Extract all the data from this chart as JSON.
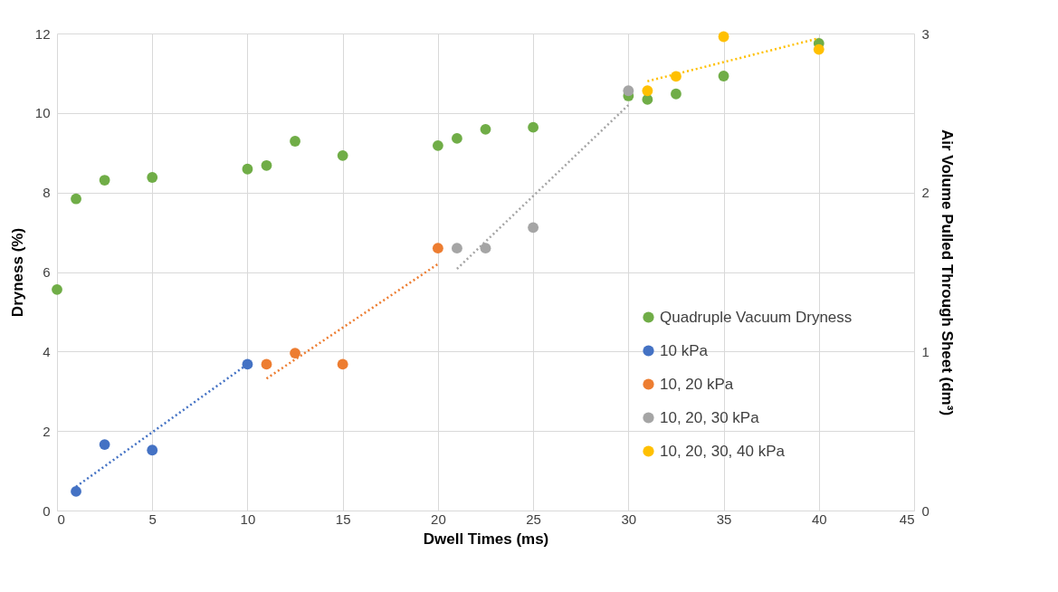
{
  "chart_data": {
    "type": "scatter",
    "xlabel": "Dwell Times (ms)",
    "ylabel": "Dryness (%)",
    "y2label": "Air Volume Pulled Through Sheet (dm³)",
    "xlim": [
      0,
      45
    ],
    "xticks": [
      0,
      5,
      10,
      15,
      20,
      25,
      30,
      35,
      40,
      45
    ],
    "ylim": [
      0,
      12
    ],
    "yticks": [
      0,
      2,
      4,
      6,
      8,
      10,
      12
    ],
    "y2lim": [
      0,
      3
    ],
    "y2ticks": [
      0,
      1,
      2,
      3
    ],
    "grid": true,
    "legend": "right",
    "marker": "circle",
    "series": [
      {
        "name": "Quadruple Vacuum Dryness",
        "color": "#70ad47",
        "x": [
          0,
          1,
          2.5,
          5,
          10,
          11,
          12.5,
          15,
          20,
          21,
          22.5,
          25,
          30,
          31,
          32.5,
          35,
          40
        ],
        "values": [
          5.56,
          7.84,
          8.31,
          8.38,
          8.59,
          8.68,
          9.29,
          8.93,
          9.18,
          9.36,
          9.59,
          9.64,
          10.43,
          10.34,
          10.48,
          10.93,
          11.75
        ]
      },
      {
        "name": "10 kPa",
        "color": "#4472c4",
        "axis": "y2",
        "x": [
          1,
          2.5,
          5,
          10
        ],
        "values": [
          0.12,
          0.415,
          0.38,
          0.92
        ]
      },
      {
        "name": "10, 20 kPa",
        "color": "#ed7d31",
        "axis": "y2",
        "x": [
          11,
          12.5,
          15,
          20
        ],
        "values": [
          0.92,
          0.99,
          0.92,
          1.65
        ]
      },
      {
        "name": "10, 20, 30 kPa",
        "color": "#a5a5a5",
        "axis": "y2",
        "x": [
          21,
          22.5,
          25,
          30
        ],
        "values": [
          1.65,
          1.65,
          1.78,
          2.64
        ]
      },
      {
        "name": "10, 20, 30, 40 kPa",
        "color": "#ffc000",
        "axis": "y2",
        "x": [
          31,
          32.5,
          35,
          40
        ],
        "values": [
          2.64,
          2.73,
          2.98,
          2.9
        ]
      },
      {
        "type": "line",
        "color": "#4472c4",
        "axis": "y2",
        "line_style": "dotted",
        "marker": "none",
        "x": [
          1,
          10
        ],
        "values": [
          0.15,
          0.92
        ]
      },
      {
        "type": "line",
        "color": "#ed7d31",
        "axis": "y2",
        "line_style": "dotted",
        "marker": "none",
        "x": [
          11,
          20
        ],
        "values": [
          0.83,
          1.55
        ]
      },
      {
        "type": "line",
        "color": "#a5a5a5",
        "axis": "y2",
        "line_style": "dotted",
        "marker": "none",
        "x": [
          21,
          30
        ],
        "values": [
          1.52,
          2.55
        ]
      },
      {
        "type": "line",
        "color": "#ffc000",
        "axis": "y2",
        "line_style": "dotted",
        "marker": "none",
        "x": [
          31,
          40
        ],
        "values": [
          2.7,
          2.97
        ]
      }
    ]
  }
}
